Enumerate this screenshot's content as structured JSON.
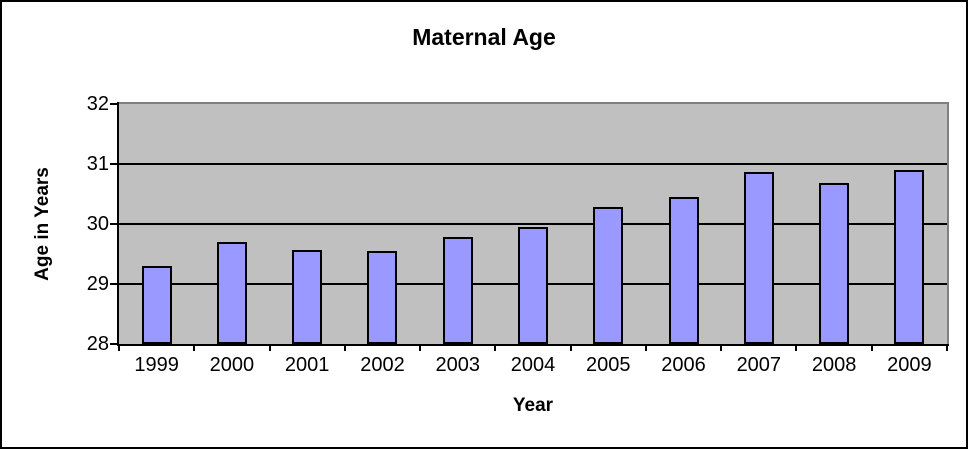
{
  "window": {
    "background": "#ffffff",
    "outer_border_color": "#000000"
  },
  "chart_data": {
    "type": "bar",
    "title": "Maternal Age",
    "xlabel": "Year",
    "ylabel": "Age in Years",
    "categories": [
      "1999",
      "2000",
      "2001",
      "2002",
      "2003",
      "2004",
      "2005",
      "2006",
      "2007",
      "2008",
      "2009"
    ],
    "values": [
      29.3,
      29.7,
      29.57,
      29.55,
      29.78,
      29.95,
      30.28,
      30.45,
      30.87,
      30.68,
      30.9
    ],
    "ylim": [
      28,
      32
    ],
    "yticks": [
      32,
      31,
      30,
      29,
      28
    ],
    "gridline_values": [
      31,
      30,
      29
    ],
    "grid": true,
    "legend_position": "none",
    "colors": {
      "bar_fill": "#9999ff",
      "bar_border": "#000000",
      "plot_background": "#c0c0c0",
      "plot_border": "#808080",
      "gridline": "#000000",
      "axis": "#000000",
      "text": "#000000"
    }
  }
}
